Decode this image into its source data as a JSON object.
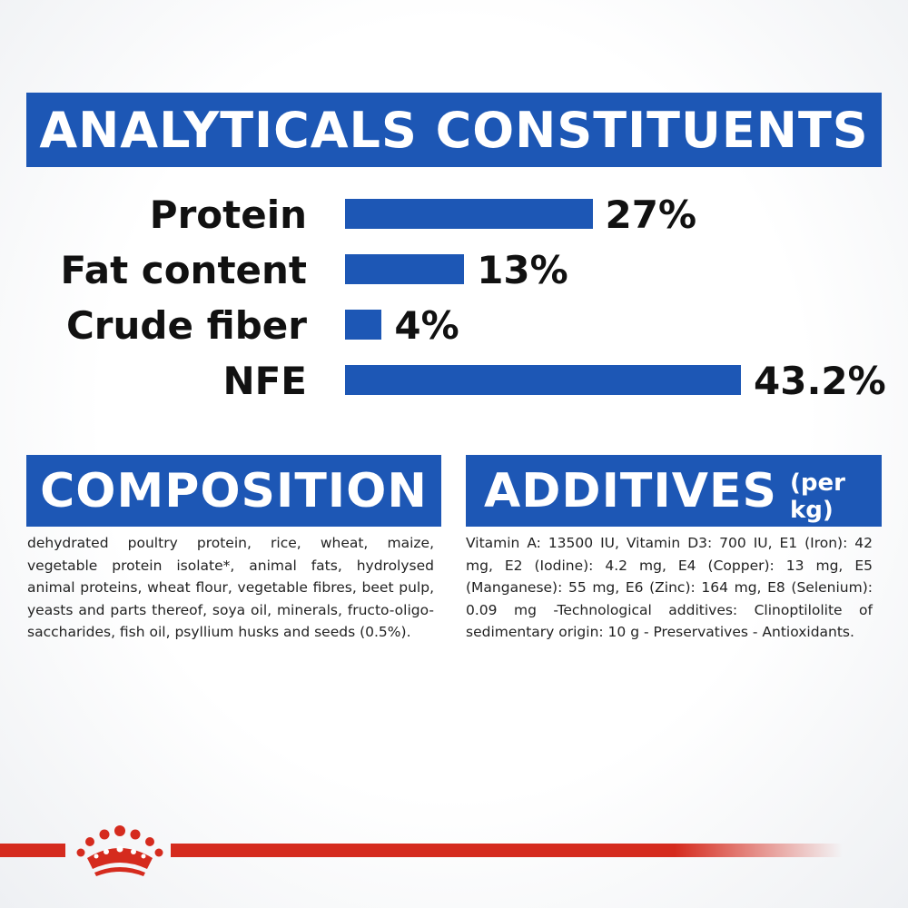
{
  "colors": {
    "brand_blue": "#1d57b5",
    "brand_red": "#d52b1e",
    "text": "#111111"
  },
  "header": {
    "title": "ANALYTICALS CONSTITUENTS"
  },
  "chart_data": {
    "type": "bar",
    "orientation": "horizontal",
    "title": "ANALYTICALS CONSTITUENTS",
    "categories": [
      "Protein",
      "Fat content",
      "Crude fiber",
      "NFE"
    ],
    "values": [
      27,
      13,
      4,
      43.2
    ],
    "value_labels": [
      "27%",
      "13%",
      "4%",
      "43.2%"
    ],
    "unit": "%",
    "xlim": [
      0,
      45
    ],
    "grid": false,
    "legend": "none"
  },
  "composition": {
    "title": "COMPOSITION",
    "text": "dehydrated poultry protein, rice, wheat, maize, vegetable protein isolate*, animal fats, hydrolysed animal proteins, wheat flour, vegetable fibres, beet pulp, yeasts and parts thereof, soya oil, minerals, fructo-oligo-saccharides, fish oil, psyllium husks and seeds (0.5%)."
  },
  "additives": {
    "title": "ADDITIVES",
    "subtitle": "(per kg)",
    "text": "Vitamin A: 13500 IU, Vitamin D3: 700 IU, E1 (Iron): 42 mg, E2 (Iodine): 4.2 mg, E4 (Copper): 13 mg, E5 (Manganese): 55 mg, E6 (Zinc): 164 mg, E8 (Selenium): 0.09 mg -Technological additives: Clinoptilolite of sedimentary origin: 10 g - Preservatives - Antioxidants."
  },
  "footer": {
    "logo_icon": "crown-icon"
  }
}
